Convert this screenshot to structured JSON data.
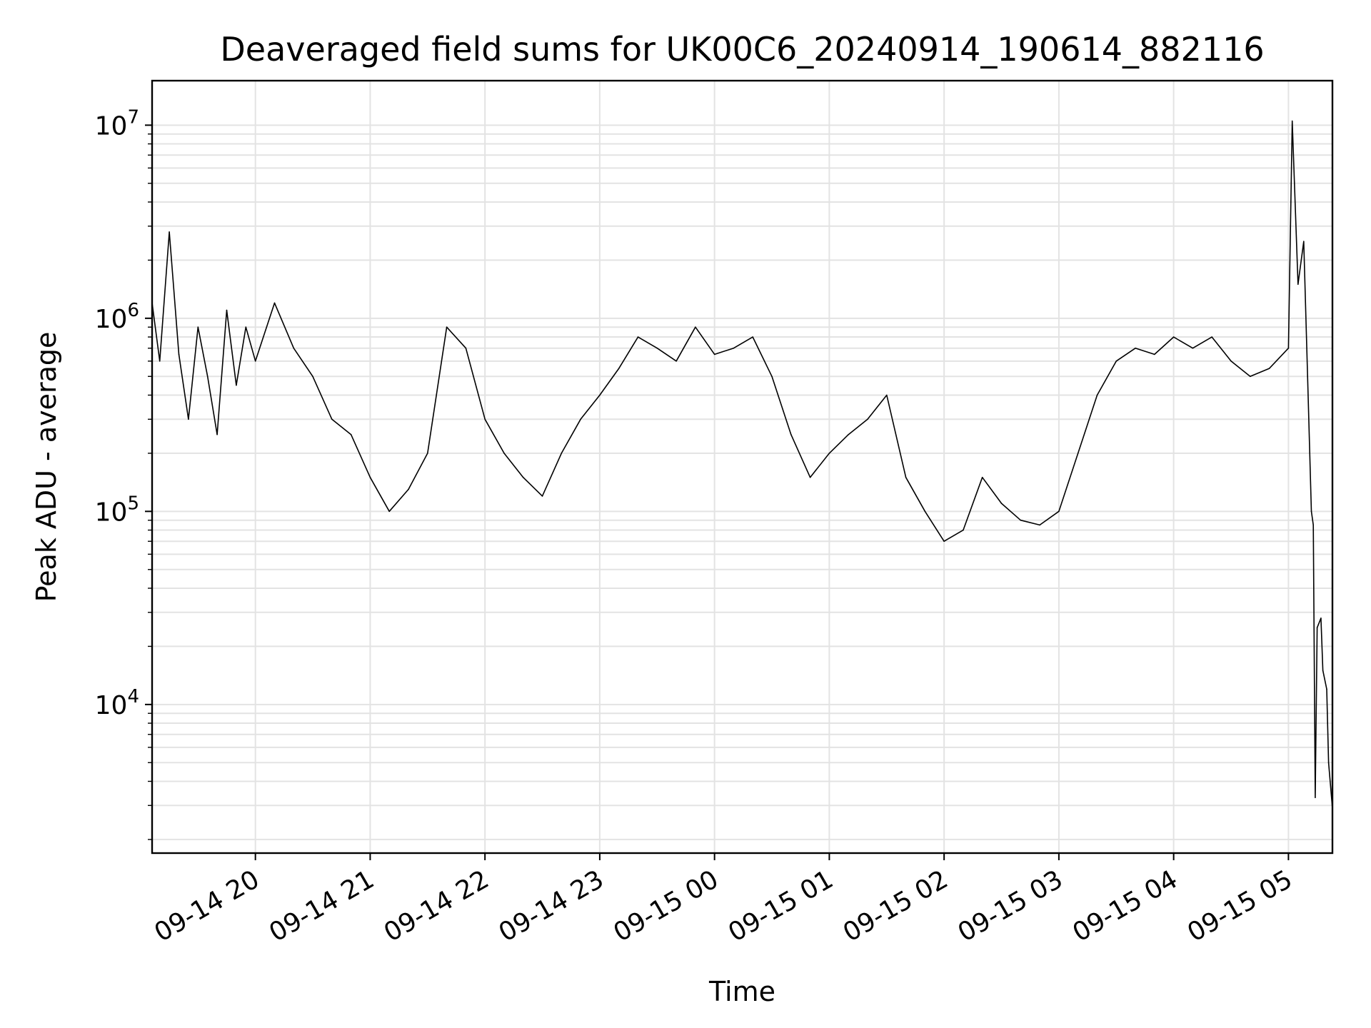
{
  "chart_data": {
    "type": "line",
    "title": "Deaveraged field sums for UK00C6_20240914_190614_882116",
    "xlabel": "Time",
    "ylabel": "Peak ADU - average",
    "yscale": "log",
    "grid": true,
    "x_range": [
      "09-14 19:06",
      "09-15 05:23"
    ],
    "ylim": [
      1700,
      17000000
    ],
    "x_ticks": [
      "09-14 20",
      "09-14 21",
      "09-14 22",
      "09-14 23",
      "09-15 00",
      "09-15 01",
      "09-15 02",
      "09-15 03",
      "09-15 04",
      "09-15 05"
    ],
    "y_ticks": [
      {
        "value": 10000,
        "base": "10",
        "exp": "4"
      },
      {
        "value": 100000,
        "base": "10",
        "exp": "5"
      },
      {
        "value": 1000000,
        "base": "10",
        "exp": "6"
      },
      {
        "value": 10000000,
        "base": "10",
        "exp": "7"
      }
    ],
    "series": [
      {
        "color": "#000000",
        "points": [
          [
            "09-14 19:06",
            1200000
          ],
          [
            "09-14 19:10",
            600000
          ],
          [
            "09-14 19:15",
            2800000
          ],
          [
            "09-14 19:20",
            650000
          ],
          [
            "09-14 19:25",
            300000
          ],
          [
            "09-14 19:30",
            900000
          ],
          [
            "09-14 19:35",
            500000
          ],
          [
            "09-14 19:40",
            250000
          ],
          [
            "09-14 19:45",
            1100000
          ],
          [
            "09-14 19:50",
            450000
          ],
          [
            "09-14 19:55",
            900000
          ],
          [
            "09-14 20:00",
            600000
          ],
          [
            "09-14 20:10",
            1200000
          ],
          [
            "09-14 20:20",
            700000
          ],
          [
            "09-14 20:30",
            500000
          ],
          [
            "09-14 20:40",
            300000
          ],
          [
            "09-14 20:50",
            250000
          ],
          [
            "09-14 21:00",
            150000
          ],
          [
            "09-14 21:10",
            100000
          ],
          [
            "09-14 21:20",
            130000
          ],
          [
            "09-14 21:30",
            200000
          ],
          [
            "09-14 21:40",
            900000
          ],
          [
            "09-14 21:50",
            700000
          ],
          [
            "09-14 22:00",
            300000
          ],
          [
            "09-14 22:10",
            200000
          ],
          [
            "09-14 22:20",
            150000
          ],
          [
            "09-14 22:30",
            120000
          ],
          [
            "09-14 22:40",
            200000
          ],
          [
            "09-14 22:50",
            300000
          ],
          [
            "09-14 23:00",
            400000
          ],
          [
            "09-14 23:10",
            550000
          ],
          [
            "09-14 23:20",
            800000
          ],
          [
            "09-14 23:30",
            700000
          ],
          [
            "09-14 23:40",
            600000
          ],
          [
            "09-14 23:50",
            900000
          ],
          [
            "09-15 00:00",
            650000
          ],
          [
            "09-15 00:10",
            700000
          ],
          [
            "09-15 00:20",
            800000
          ],
          [
            "09-15 00:30",
            500000
          ],
          [
            "09-15 00:40",
            250000
          ],
          [
            "09-15 00:50",
            150000
          ],
          [
            "09-15 01:00",
            200000
          ],
          [
            "09-15 01:10",
            250000
          ],
          [
            "09-15 01:20",
            300000
          ],
          [
            "09-15 01:30",
            400000
          ],
          [
            "09-15 01:40",
            150000
          ],
          [
            "09-15 01:50",
            100000
          ],
          [
            "09-15 02:00",
            70000
          ],
          [
            "09-15 02:10",
            80000
          ],
          [
            "09-15 02:20",
            150000
          ],
          [
            "09-15 02:30",
            110000
          ],
          [
            "09-15 02:40",
            90000
          ],
          [
            "09-15 02:50",
            85000
          ],
          [
            "09-15 03:00",
            100000
          ],
          [
            "09-15 03:10",
            200000
          ],
          [
            "09-15 03:20",
            400000
          ],
          [
            "09-15 03:30",
            600000
          ],
          [
            "09-15 03:40",
            700000
          ],
          [
            "09-15 03:50",
            650000
          ],
          [
            "09-15 04:00",
            800000
          ],
          [
            "09-15 04:10",
            700000
          ],
          [
            "09-15 04:20",
            800000
          ],
          [
            "09-15 04:30",
            600000
          ],
          [
            "09-15 04:40",
            500000
          ],
          [
            "09-15 04:50",
            550000
          ],
          [
            "09-15 05:00",
            700000
          ],
          [
            "09-15 05:02",
            10500000
          ],
          [
            "09-15 05:05",
            1500000
          ],
          [
            "09-15 05:08",
            2500000
          ],
          [
            "09-15 05:10",
            500000
          ],
          [
            "09-15 05:12",
            100000
          ],
          [
            "09-15 05:13",
            85000
          ],
          [
            "09-15 05:14",
            3300
          ],
          [
            "09-15 05:15",
            25000
          ],
          [
            "09-15 05:17",
            28000
          ],
          [
            "09-15 05:18",
            15000
          ],
          [
            "09-15 05:20",
            12000
          ],
          [
            "09-15 05:21",
            5000
          ],
          [
            "09-15 05:23",
            2900
          ]
        ]
      }
    ]
  }
}
